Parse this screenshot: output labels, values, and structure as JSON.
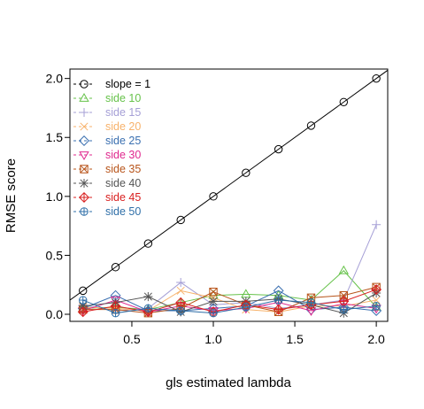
{
  "chart_data": {
    "type": "line",
    "title": "",
    "xlabel": "gls estimated lambda",
    "ylabel": "RMSE score",
    "xlim": [
      0.12,
      2.07
    ],
    "ylim": [
      -0.06,
      2.08
    ],
    "x_ticks": [
      "0.5",
      "1.0",
      "1.5",
      "2.0"
    ],
    "x_tick_values": [
      0.5,
      1.0,
      1.5,
      2.0
    ],
    "y_ticks": [
      "0.0",
      "0.5",
      "1.0",
      "1.5",
      "2.0"
    ],
    "y_tick_values": [
      0.0,
      0.5,
      1.0,
      1.5,
      2.0
    ],
    "grid": false,
    "legend_position": "top-left",
    "x": [
      0.2,
      0.4,
      0.6,
      0.8,
      1.0,
      1.2,
      1.4,
      1.6,
      1.8,
      2.0
    ],
    "series": [
      {
        "name": "slope = 1",
        "color": "#000000",
        "marker": "circle",
        "line": "solid",
        "values": [
          0.2,
          0.4,
          0.6,
          0.8,
          1.0,
          1.2,
          1.4,
          1.6,
          1.8,
          2.0
        ]
      },
      {
        "name": "side 10",
        "color": "#66c24a",
        "marker": "triangle-up",
        "line": "solid",
        "values": [
          0.05,
          0.06,
          0.04,
          0.1,
          0.16,
          0.17,
          0.16,
          0.12,
          0.37,
          0.06
        ]
      },
      {
        "name": "side 15",
        "color": "#a59fd6",
        "marker": "plus",
        "line": "solid",
        "values": [
          0.08,
          0.03,
          0.05,
          0.27,
          0.08,
          0.1,
          0.05,
          0.08,
          0.12,
          0.76
        ]
      },
      {
        "name": "side 20",
        "color": "#f7b26b",
        "marker": "cross",
        "line": "solid",
        "values": [
          0.06,
          0.05,
          0.03,
          0.2,
          0.14,
          0.04,
          0.02,
          0.07,
          0.07,
          0.12
        ]
      },
      {
        "name": "side 25",
        "color": "#3a6fb0",
        "marker": "diamond",
        "line": "solid",
        "values": [
          0.05,
          0.16,
          0.03,
          0.03,
          0.05,
          0.07,
          0.2,
          0.04,
          0.06,
          0.03
        ]
      },
      {
        "name": "side 30",
        "color": "#e0288e",
        "marker": "triangle-down",
        "line": "solid",
        "values": [
          0.03,
          0.12,
          0.02,
          0.07,
          0.03,
          0.05,
          0.1,
          0.03,
          0.09,
          0.05
        ]
      },
      {
        "name": "side 35",
        "color": "#b8541a",
        "marker": "square-x",
        "line": "solid",
        "values": [
          0.04,
          0.04,
          0.01,
          0.05,
          0.19,
          0.08,
          0.02,
          0.14,
          0.16,
          0.23
        ]
      },
      {
        "name": "side 40",
        "color": "#555555",
        "marker": "asterisk",
        "line": "solid",
        "values": [
          0.07,
          0.1,
          0.15,
          0.02,
          0.11,
          0.11,
          0.13,
          0.08,
          0.01,
          0.18
        ]
      },
      {
        "name": "side 45",
        "color": "#d92020",
        "marker": "diamond-plus",
        "line": "solid",
        "values": [
          0.02,
          0.07,
          0.02,
          0.1,
          0.02,
          0.08,
          0.04,
          0.08,
          0.11,
          0.21
        ]
      },
      {
        "name": "side 50",
        "color": "#2f6fa8",
        "marker": "circle-plus",
        "line": "solid",
        "values": [
          0.12,
          0.01,
          0.05,
          0.03,
          0.01,
          0.06,
          0.12,
          0.1,
          0.04,
          0.07
        ]
      }
    ]
  }
}
